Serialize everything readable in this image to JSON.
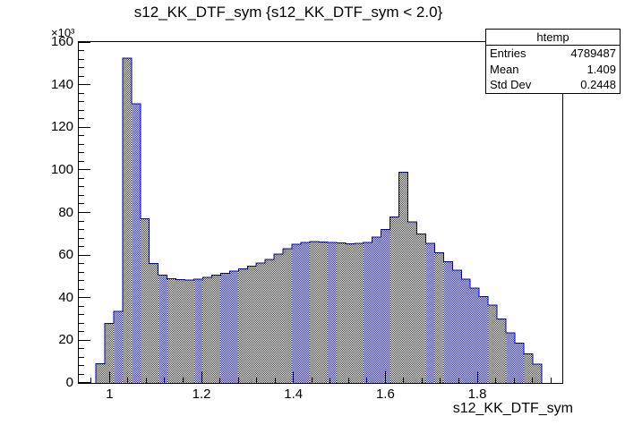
{
  "title": "s12_KK_DTF_sym {s12_KK_DTF_sym < 2.0}",
  "stats": {
    "title": "htemp",
    "rows": [
      {
        "label": "Entries",
        "value": "4789487"
      },
      {
        "label": "Mean",
        "value": "1.409"
      },
      {
        "label": "Std Dev",
        "value": "0.2448"
      }
    ]
  },
  "axes": {
    "x": {
      "title": "s12_KK_DTF_sym",
      "min": 0.933,
      "max": 1.985,
      "major_ticks": [
        1.0,
        1.2,
        1.4,
        1.6,
        1.8
      ],
      "tick_labels": [
        "1",
        "1.2",
        "1.4",
        "1.6",
        "1.8"
      ],
      "minor_step": 0.04
    },
    "y": {
      "min": 0,
      "max": 160000,
      "major_step": 20000,
      "tick_labels": [
        "0",
        "20",
        "40",
        "60",
        "80",
        "100",
        "120",
        "140",
        "160"
      ],
      "minor_step": 4000,
      "exponent": "×10³"
    }
  },
  "colors": {
    "hist_fill": "#2b2bc0",
    "hist_line": "#0000a8",
    "axis": "#000000",
    "background": "#ffffff"
  },
  "chart_data": {
    "type": "bar",
    "subtype": "histogram",
    "title": "s12_KK_DTF_sym {s12_KK_DTF_sym < 2.0}",
    "xlabel": "s12_KK_DTF_sym",
    "ylabel": "",
    "legend": null,
    "grid": false,
    "xlim": [
      0.933,
      1.985
    ],
    "ylim": [
      0,
      160000
    ],
    "bin_start": 0.97,
    "bin_width": 0.0194,
    "counts": [
      9000,
      28000,
      33500,
      152500,
      131000,
      77000,
      56000,
      50500,
      49000,
      48400,
      48300,
      48800,
      49600,
      50500,
      51500,
      52500,
      53600,
      54800,
      56200,
      58000,
      60500,
      63000,
      65000,
      66000,
      66300,
      66200,
      66000,
      65700,
      65400,
      65500,
      66000,
      68500,
      72000,
      78000,
      99000,
      75500,
      70000,
      65500,
      61000,
      57000,
      53000,
      48800,
      44500,
      40500,
      36500,
      30000,
      23500,
      18600,
      13700,
      8800
    ]
  }
}
